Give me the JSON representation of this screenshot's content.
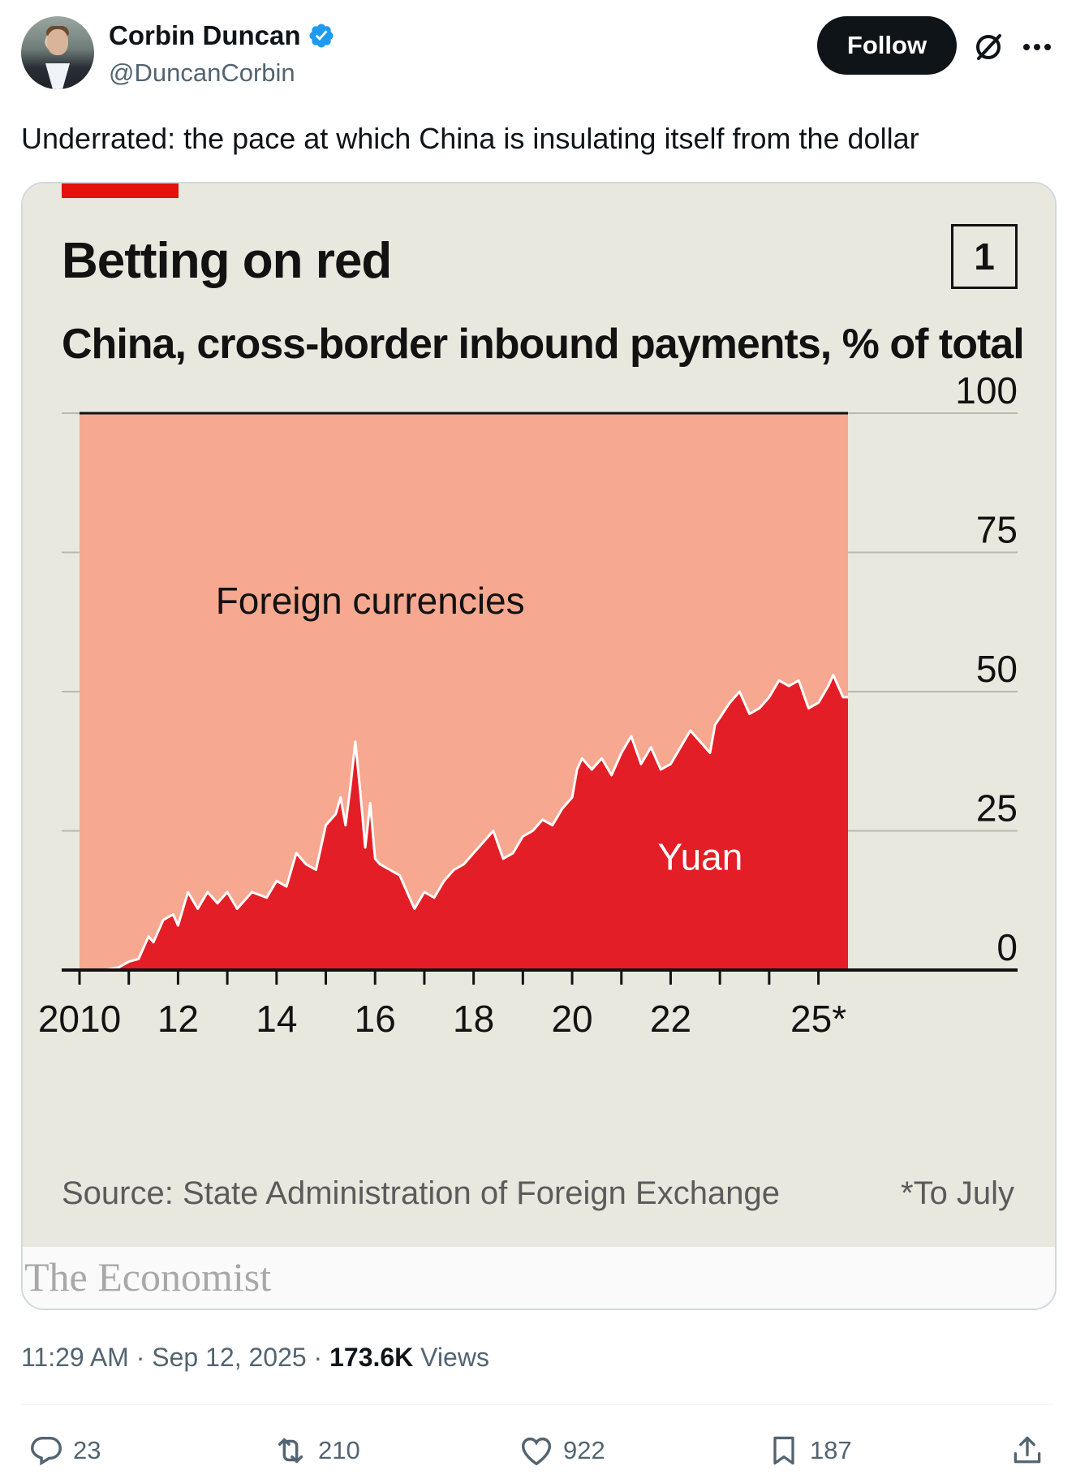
{
  "author": {
    "name": "Corbin Duncan",
    "handle": "@DuncanCorbin",
    "verified": true
  },
  "follow_label": "Follow",
  "tweet_text": "Underrated: the pace at which China is insulating itself from the dollar",
  "card": {
    "title": "Betting on red",
    "chart_number": "1",
    "subtitle": "China, cross-border inbound payments, % of total",
    "source": "Source: State Administration of Foreign Exchange",
    "footnote": "*To July",
    "brand": "The Economist"
  },
  "chart_data": {
    "type": "area",
    "title": "Betting on red",
    "subtitle": "China, cross-border inbound payments, % of total",
    "ylim": [
      0,
      100
    ],
    "y_ticks": [
      "0",
      "25",
      "50",
      "75",
      "100"
    ],
    "x_range": [
      2010,
      2025.6
    ],
    "x_tick_labels": [
      {
        "x": 2010,
        "label": "2010"
      },
      {
        "x": 2012,
        "label": "12"
      },
      {
        "x": 2014,
        "label": "14"
      },
      {
        "x": 2016,
        "label": "16"
      },
      {
        "x": 2018,
        "label": "18"
      },
      {
        "x": 2020,
        "label": "20"
      },
      {
        "x": 2022,
        "label": "22"
      },
      {
        "x": 2025,
        "label": "25*"
      }
    ],
    "series": [
      {
        "name": "Yuan",
        "color": "#e41e26",
        "label_at": [
          2022.6,
          18
        ],
        "points": [
          [
            2010,
            0
          ],
          [
            2010.5,
            0
          ],
          [
            2010.8,
            0.5
          ],
          [
            2011.0,
            1.5
          ],
          [
            2011.2,
            2
          ],
          [
            2011.4,
            6
          ],
          [
            2011.5,
            5
          ],
          [
            2011.7,
            9
          ],
          [
            2011.9,
            10
          ],
          [
            2012.0,
            8
          ],
          [
            2012.2,
            14
          ],
          [
            2012.4,
            11
          ],
          [
            2012.6,
            14
          ],
          [
            2012.8,
            12
          ],
          [
            2013.0,
            14
          ],
          [
            2013.2,
            11
          ],
          [
            2013.5,
            14
          ],
          [
            2013.8,
            13
          ],
          [
            2014.0,
            16
          ],
          [
            2014.2,
            15
          ],
          [
            2014.4,
            21
          ],
          [
            2014.6,
            19
          ],
          [
            2014.8,
            18
          ],
          [
            2015.0,
            26
          ],
          [
            2015.2,
            28
          ],
          [
            2015.3,
            31
          ],
          [
            2015.4,
            26
          ],
          [
            2015.5,
            33
          ],
          [
            2015.6,
            41
          ],
          [
            2015.7,
            32
          ],
          [
            2015.8,
            22
          ],
          [
            2015.9,
            30
          ],
          [
            2016.0,
            20
          ],
          [
            2016.1,
            19
          ],
          [
            2016.3,
            18
          ],
          [
            2016.5,
            17
          ],
          [
            2016.7,
            13
          ],
          [
            2016.8,
            11
          ],
          [
            2017.0,
            14
          ],
          [
            2017.2,
            13
          ],
          [
            2017.4,
            16
          ],
          [
            2017.6,
            18
          ],
          [
            2017.8,
            19
          ],
          [
            2018.0,
            21
          ],
          [
            2018.2,
            23
          ],
          [
            2018.4,
            25
          ],
          [
            2018.6,
            20
          ],
          [
            2018.8,
            21
          ],
          [
            2019.0,
            24
          ],
          [
            2019.2,
            25
          ],
          [
            2019.4,
            27
          ],
          [
            2019.6,
            26
          ],
          [
            2019.8,
            29
          ],
          [
            2020.0,
            31
          ],
          [
            2020.1,
            36
          ],
          [
            2020.2,
            38
          ],
          [
            2020.4,
            36
          ],
          [
            2020.6,
            38
          ],
          [
            2020.8,
            35
          ],
          [
            2021.0,
            39
          ],
          [
            2021.2,
            42
          ],
          [
            2021.4,
            37
          ],
          [
            2021.6,
            40
          ],
          [
            2021.8,
            36
          ],
          [
            2022.0,
            37
          ],
          [
            2022.2,
            40
          ],
          [
            2022.4,
            43
          ],
          [
            2022.6,
            41
          ],
          [
            2022.8,
            39
          ],
          [
            2022.9,
            44
          ],
          [
            2023.2,
            48
          ],
          [
            2023.4,
            50
          ],
          [
            2023.6,
            46
          ],
          [
            2023.8,
            47
          ],
          [
            2024.0,
            49
          ],
          [
            2024.2,
            52
          ],
          [
            2024.4,
            51
          ],
          [
            2024.6,
            52
          ],
          [
            2024.8,
            47
          ],
          [
            2025.0,
            48
          ],
          [
            2025.2,
            51
          ],
          [
            2025.3,
            53
          ],
          [
            2025.5,
            49
          ],
          [
            2025.6,
            49
          ]
        ]
      },
      {
        "name": "Foreign currencies",
        "color": "#f6a890",
        "label_at": [
          2015.9,
          64
        ],
        "note": "remainder to 100"
      }
    ]
  },
  "meta": {
    "time": "11:29 AM",
    "date": "Sep 12, 2025",
    "views_count": "173.6K",
    "views_label": "Views"
  },
  "actions": {
    "replies": "23",
    "reposts": "210",
    "likes": "922",
    "bookmarks": "187"
  }
}
